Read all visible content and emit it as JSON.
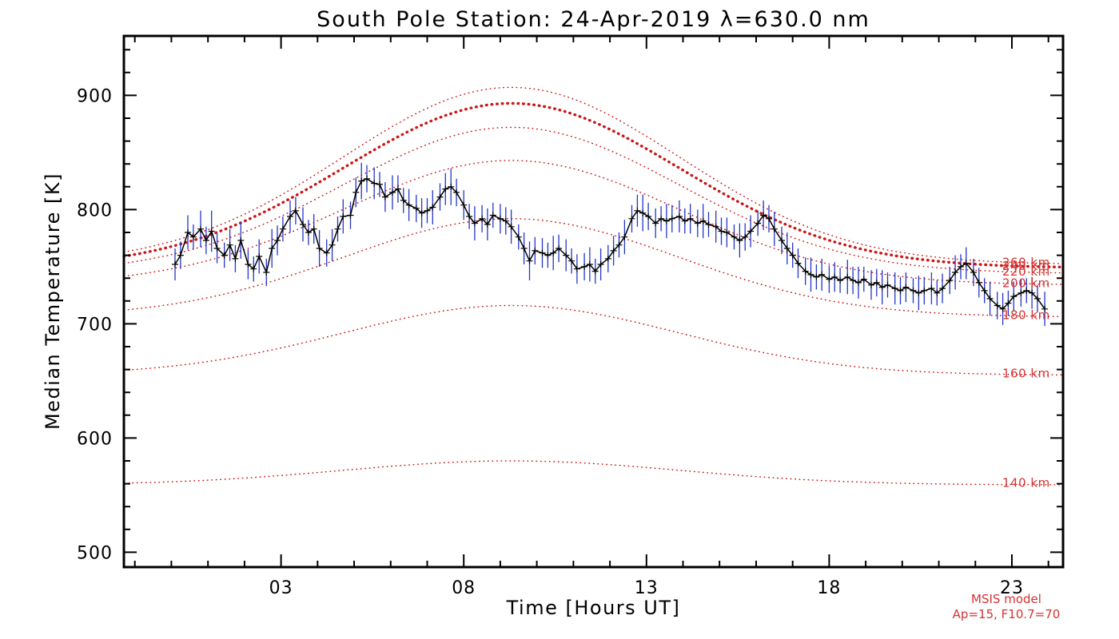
{
  "chart_data": {
    "type": "line",
    "title": "South Pole Station: 24-Apr-2019 λ=630.0 nm",
    "xlabel": "Time [Hours UT]",
    "ylabel": "Median Temperature [K]",
    "xlim": [
      -1.3,
      24.4
    ],
    "ylim": [
      487,
      952
    ],
    "x_ticks": [
      {
        "value": 3,
        "label": "03"
      },
      {
        "value": 8,
        "label": "08"
      },
      {
        "value": 13,
        "label": "13"
      },
      {
        "value": 18,
        "label": "18"
      },
      {
        "value": 23,
        "label": "23"
      }
    ],
    "y_ticks": [
      {
        "value": 500,
        "label": "500"
      },
      {
        "value": 600,
        "label": "600"
      },
      {
        "value": 700,
        "label": "700"
      },
      {
        "value": 800,
        "label": "800"
      },
      {
        "value": 900,
        "label": "900"
      }
    ],
    "x_minor_step": 1,
    "y_minor_step": 20,
    "grid": false,
    "colors": {
      "background": "#ffffff",
      "axis": "#000000",
      "model_curve": "#cc1414",
      "model_label": "#d63232",
      "data_line": "#000000",
      "error_bar": "#2436c8"
    },
    "model": {
      "annotation_lines": [
        "MSIS model",
        "Ap=15, F10.7=70"
      ],
      "peak_hour": 9.3,
      "sigma_hours": 4.6,
      "curves": [
        {
          "altitude_km": 140,
          "label": "140 km",
          "night": 559,
          "peak": 580,
          "emphasis": false
        },
        {
          "altitude_km": 160,
          "label": "160 km",
          "night": 655,
          "peak": 716,
          "emphasis": false
        },
        {
          "altitude_km": 180,
          "label": "180 km",
          "night": 706,
          "peak": 792,
          "emphasis": false
        },
        {
          "altitude_km": 200,
          "label": "200 km",
          "night": 734,
          "peak": 843,
          "emphasis": false
        },
        {
          "altitude_km": 220,
          "label": "220 km",
          "night": 744,
          "peak": 872,
          "emphasis": false
        },
        {
          "altitude_km": 240,
          "label": "240 km",
          "night": 749,
          "peak": 893,
          "emphasis": true
        },
        {
          "altitude_km": 260,
          "label": "260 km",
          "night": 752,
          "peak": 907,
          "emphasis": false
        }
      ]
    },
    "series": {
      "name": "Median temperature with uncertainty",
      "points": [
        [
          0.1,
          752,
          14
        ],
        [
          0.25,
          760,
          12
        ],
        [
          0.45,
          780,
          15
        ],
        [
          0.6,
          776,
          11
        ],
        [
          0.8,
          783,
          16
        ],
        [
          0.95,
          773,
          12
        ],
        [
          1.1,
          781,
          18
        ],
        [
          1.25,
          766,
          13
        ],
        [
          1.45,
          760,
          11
        ],
        [
          1.6,
          769,
          14
        ],
        [
          1.75,
          757,
          12
        ],
        [
          1.9,
          773,
          16
        ],
        [
          2.1,
          752,
          13
        ],
        [
          2.25,
          748,
          11
        ],
        [
          2.4,
          759,
          15
        ],
        [
          2.6,
          745,
          12
        ],
        [
          2.75,
          766,
          17
        ],
        [
          2.9,
          773,
          13
        ],
        [
          3.05,
          783,
          11
        ],
        [
          3.25,
          794,
          14
        ],
        [
          3.4,
          799,
          12
        ],
        [
          3.6,
          787,
          15
        ],
        [
          3.75,
          780,
          11
        ],
        [
          3.9,
          783,
          13
        ],
        [
          4.05,
          766,
          16
        ],
        [
          4.25,
          762,
          12
        ],
        [
          4.4,
          769,
          14
        ],
        [
          4.55,
          783,
          11
        ],
        [
          4.7,
          794,
          15
        ],
        [
          4.9,
          795,
          12
        ],
        [
          5.05,
          815,
          13
        ],
        [
          5.2,
          825,
          16
        ],
        [
          5.35,
          827,
          12
        ],
        [
          5.55,
          823,
          14
        ],
        [
          5.7,
          822,
          11
        ],
        [
          5.85,
          811,
          13
        ],
        [
          6.05,
          815,
          15
        ],
        [
          6.2,
          818,
          12
        ],
        [
          6.35,
          808,
          11
        ],
        [
          6.5,
          804,
          14
        ],
        [
          6.7,
          801,
          12
        ],
        [
          6.85,
          797,
          13
        ],
        [
          7.0,
          799,
          11
        ],
        [
          7.15,
          802,
          15
        ],
        [
          7.35,
          811,
          12
        ],
        [
          7.5,
          818,
          14
        ],
        [
          7.65,
          820,
          16
        ],
        [
          7.8,
          815,
          12
        ],
        [
          8.0,
          804,
          13
        ],
        [
          8.15,
          794,
          11
        ],
        [
          8.3,
          788,
          15
        ],
        [
          8.5,
          792,
          12
        ],
        [
          8.65,
          787,
          14
        ],
        [
          8.8,
          795,
          11
        ],
        [
          9.0,
          792,
          13
        ],
        [
          9.15,
          790,
          12
        ],
        [
          9.3,
          785,
          15
        ],
        [
          9.5,
          776,
          11
        ],
        [
          9.65,
          766,
          14
        ],
        [
          9.8,
          755,
          17
        ],
        [
          9.95,
          764,
          12
        ],
        [
          10.15,
          762,
          13
        ],
        [
          10.3,
          760,
          11
        ],
        [
          10.45,
          762,
          15
        ],
        [
          10.6,
          766,
          12
        ],
        [
          10.8,
          760,
          14
        ],
        [
          10.95,
          755,
          11
        ],
        [
          11.1,
          748,
          13
        ],
        [
          11.3,
          750,
          12
        ],
        [
          11.45,
          752,
          15
        ],
        [
          11.6,
          746,
          11
        ],
        [
          11.75,
          752,
          14
        ],
        [
          11.95,
          757,
          12
        ],
        [
          12.1,
          764,
          13
        ],
        [
          12.25,
          769,
          11
        ],
        [
          12.4,
          776,
          15
        ],
        [
          12.6,
          792,
          12
        ],
        [
          12.75,
          799,
          14
        ],
        [
          12.9,
          797,
          16
        ],
        [
          13.05,
          794,
          12
        ],
        [
          13.25,
          788,
          13
        ],
        [
          13.4,
          792,
          11
        ],
        [
          13.55,
          790,
          15
        ],
        [
          13.7,
          792,
          12
        ],
        [
          13.9,
          794,
          14
        ],
        [
          14.05,
          790,
          11
        ],
        [
          14.2,
          792,
          13
        ],
        [
          14.4,
          788,
          12
        ],
        [
          14.55,
          790,
          15
        ],
        [
          14.7,
          787,
          11
        ],
        [
          14.9,
          785,
          14
        ],
        [
          15.05,
          781,
          12
        ],
        [
          15.2,
          780,
          13
        ],
        [
          15.4,
          776,
          11
        ],
        [
          15.55,
          773,
          15
        ],
        [
          15.7,
          776,
          12
        ],
        [
          15.85,
          781,
          14
        ],
        [
          16.05,
          788,
          11
        ],
        [
          16.2,
          795,
          13
        ],
        [
          16.35,
          792,
          12
        ],
        [
          16.5,
          783,
          15
        ],
        [
          16.7,
          773,
          12
        ],
        [
          16.85,
          766,
          14
        ],
        [
          17.0,
          760,
          11
        ],
        [
          17.15,
          753,
          13
        ],
        [
          17.35,
          746,
          12
        ],
        [
          17.5,
          743,
          15
        ],
        [
          17.65,
          741,
          11
        ],
        [
          17.8,
          743,
          14
        ],
        [
          18.0,
          739,
          12
        ],
        [
          18.15,
          741,
          13
        ],
        [
          18.3,
          738,
          11
        ],
        [
          18.5,
          741,
          15
        ],
        [
          18.65,
          738,
          12
        ],
        [
          18.8,
          736,
          14
        ],
        [
          18.95,
          739,
          11
        ],
        [
          19.15,
          734,
          13
        ],
        [
          19.3,
          736,
          12
        ],
        [
          19.45,
          732,
          15
        ],
        [
          19.6,
          734,
          11
        ],
        [
          19.8,
          731,
          14
        ],
        [
          19.95,
          729,
          12
        ],
        [
          20.1,
          732,
          13
        ],
        [
          20.3,
          729,
          11
        ],
        [
          20.45,
          727,
          15
        ],
        [
          20.6,
          729,
          12
        ],
        [
          20.8,
          731,
          14
        ],
        [
          20.95,
          727,
          11
        ],
        [
          21.1,
          731,
          13
        ],
        [
          21.3,
          738,
          12
        ],
        [
          21.45,
          745,
          15
        ],
        [
          21.6,
          750,
          11
        ],
        [
          21.75,
          753,
          14
        ],
        [
          21.95,
          745,
          12
        ],
        [
          22.1,
          736,
          13
        ],
        [
          22.25,
          729,
          11
        ],
        [
          22.4,
          722,
          15
        ],
        [
          22.6,
          716,
          12
        ],
        [
          22.75,
          713,
          14
        ],
        [
          22.9,
          718,
          11
        ],
        [
          23.05,
          724,
          13
        ],
        [
          23.25,
          727,
          12
        ],
        [
          23.4,
          729,
          11
        ],
        [
          23.55,
          727,
          14
        ],
        [
          23.7,
          722,
          12
        ],
        [
          23.9,
          713,
          15
        ]
      ]
    }
  }
}
